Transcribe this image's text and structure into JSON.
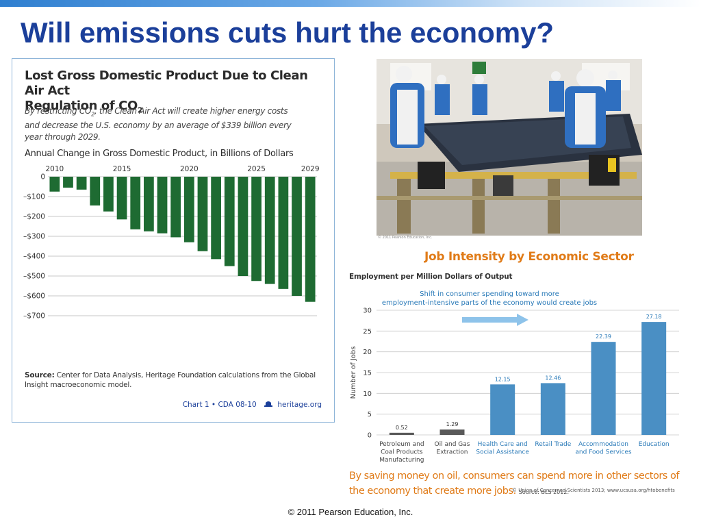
{
  "slide": {
    "title": "Will emissions cuts hurt the economy?",
    "footer": "© 2011 Pearson Education, Inc."
  },
  "left_chart": {
    "title_line1": "Lost Gross Domestic Product Due to Clean Air Act",
    "title_line2": "Regulation of CO",
    "title_sub": "2",
    "desc_part1": "By restricting CO",
    "desc_sub": "2",
    "desc_part2": ", the Clean Air Act will create higher energy costs and decrease the U.S. economy by an average of $339 billion every year through 2029.",
    "source_label": "Source:",
    "source_text": " Center for Data Analysis, Heritage Foundation calculations from the Global Insight macroeconomic model.",
    "footer_chart": "Chart 1 • CDA 08-10",
    "footer_site": "heritage.org",
    "bar_color": "#1e6b32"
  },
  "right_chart": {
    "title": "Job Intensity by Economic Sector",
    "subtitle": "Employment per Million Dollars of Output",
    "caption": "By saving money on oil, consumers can spend more in other sectors of the economy that create more jobs.",
    "source": "Source: BLS 2012.",
    "copyright": "© Union of Concerned Scientists 2013; www.ucsusa.org/htobenefits",
    "title_color": "#e07b18"
  },
  "photo": {
    "credit": "© 2011 Pearson Education, Inc."
  },
  "chart_data": [
    {
      "type": "bar",
      "title": "Annual Change in Gross Domestic Product, in Billions of Dollars",
      "xlabel": "",
      "ylabel": "",
      "x": [
        2010,
        2011,
        2012,
        2013,
        2014,
        2015,
        2016,
        2017,
        2018,
        2019,
        2020,
        2021,
        2022,
        2023,
        2024,
        2025,
        2026,
        2027,
        2028,
        2029
      ],
      "x_tick_labels": [
        "2010",
        "2015",
        "2020",
        "2025",
        "2029"
      ],
      "x_tick_values": [
        2010,
        2015,
        2020,
        2025,
        2029
      ],
      "values": [
        -75,
        -55,
        -65,
        -145,
        -175,
        -215,
        -265,
        -275,
        -285,
        -305,
        -330,
        -375,
        -415,
        -450,
        -500,
        -525,
        -540,
        -565,
        -600,
        -630
      ],
      "ylim": [
        -700,
        0
      ],
      "y_ticks": [
        0,
        -100,
        -200,
        -300,
        -400,
        -500,
        -600,
        -700
      ],
      "y_tick_labels": [
        "0",
        "–$100",
        "–$200",
        "–$300",
        "–$400",
        "–$500",
        "–$600",
        "–$700"
      ],
      "grid": true
    },
    {
      "type": "bar",
      "title": "",
      "xlabel": "",
      "ylabel": "Number of Jobs",
      "categories": [
        [
          "Petroleum and",
          "Coal Products",
          "Manufacturing"
        ],
        [
          "Oil and Gas",
          "Extraction"
        ],
        [
          "Health Care and",
          "Social Assistance"
        ],
        [
          "Retail Trade"
        ],
        [
          "Accommodation",
          "and Food Services"
        ],
        [
          "Education"
        ]
      ],
      "values": [
        0.52,
        1.29,
        12.15,
        12.46,
        22.39,
        27.18
      ],
      "value_labels": [
        "0.52",
        "1.29",
        "12.15",
        "12.46",
        "22.39",
        "27.18"
      ],
      "bar_colors": [
        "#595959",
        "#595959",
        "#4a8fc4",
        "#4a8fc4",
        "#4a8fc4",
        "#4a8fc4"
      ],
      "category_label_colors": [
        "#444444",
        "#444444",
        "#2a7ab8",
        "#2a7ab8",
        "#2a7ab8",
        "#2a7ab8"
      ],
      "ylim": [
        0,
        30
      ],
      "y_ticks": [
        0,
        5,
        10,
        15,
        20,
        25,
        30
      ],
      "grid": true,
      "annotation": [
        "Shift in consumer spending toward more",
        "employment-intensive parts of the economy would create jobs"
      ]
    }
  ]
}
